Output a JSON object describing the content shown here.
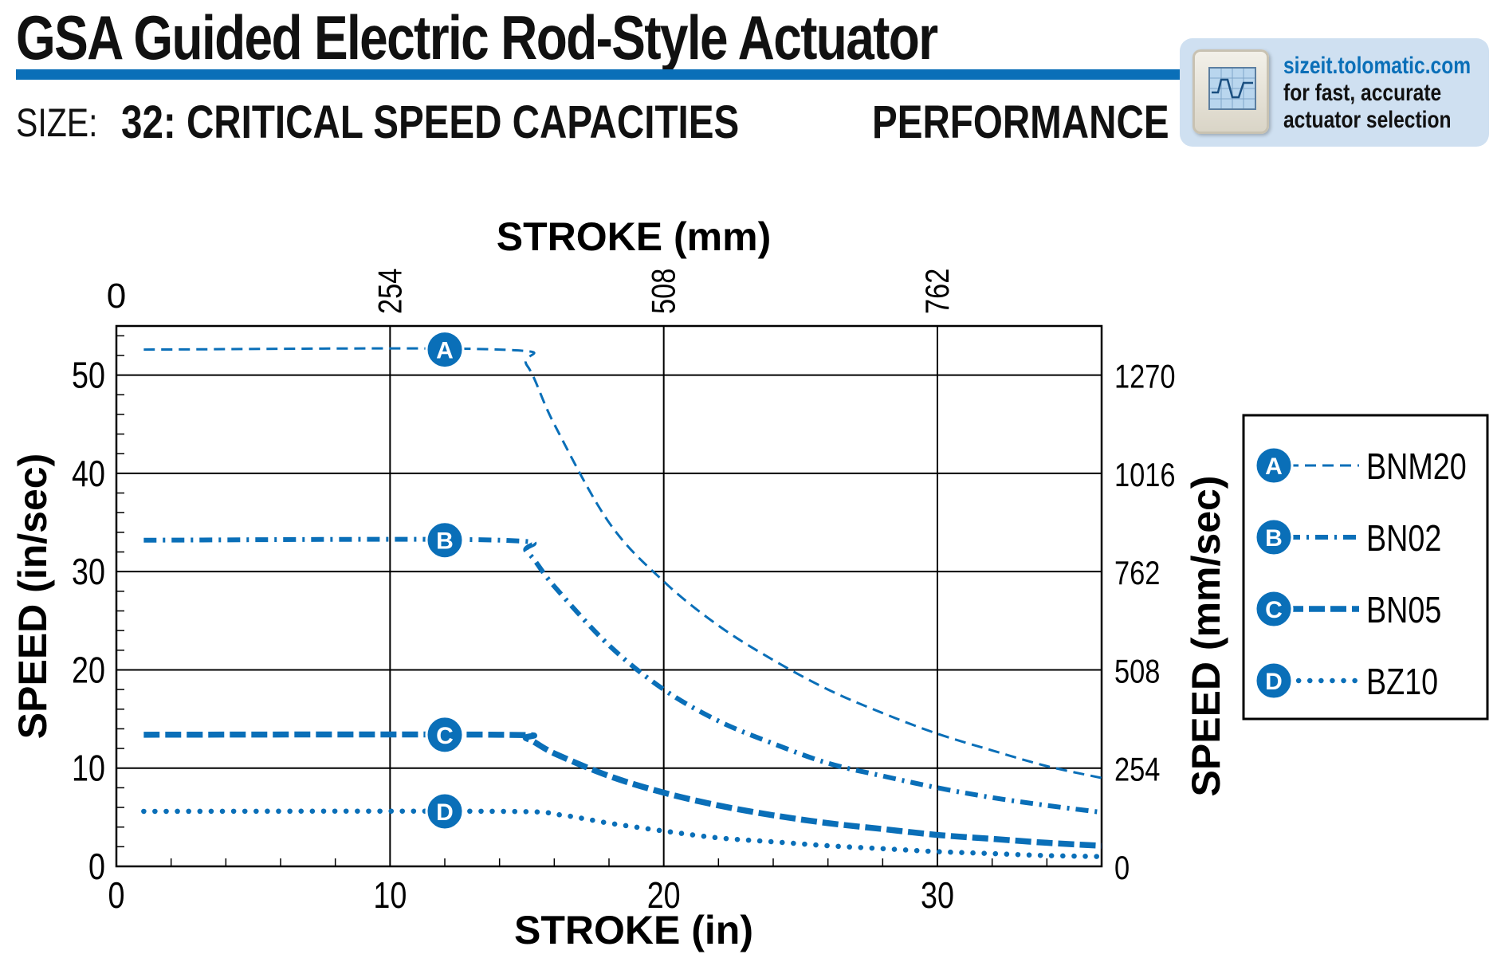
{
  "header": {
    "title": "GSA Guided Electric Rod-Style Actuator",
    "size_label": "SIZE:",
    "size_text": "32: CRITICAL SPEED CAPACITIES",
    "section": "PERFORMANCE",
    "badge": {
      "line1": "sizeit.tolomatic.com",
      "line2": "for fast, accurate",
      "line3": "actuator selection"
    }
  },
  "colors": {
    "accent": "#0a6fb8",
    "grid": "#000000"
  },
  "chart_data": {
    "type": "line",
    "title": "",
    "xlabel": "STROKE (in)",
    "ylabel": "SPEED (in/sec)",
    "x2label": "STROKE (mm)",
    "y2label": "SPEED (mm/sec)",
    "xlim": [
      0,
      36
    ],
    "ylim": [
      0,
      55
    ],
    "x_ticks": [
      "0",
      "10",
      "20",
      "30"
    ],
    "x_tick_values": [
      0,
      10,
      20,
      30
    ],
    "y_ticks": [
      "0",
      "10",
      "20",
      "30",
      "40",
      "50"
    ],
    "y_tick_values": [
      0,
      10,
      20,
      30,
      40,
      50
    ],
    "x2_ticks": [
      "0",
      "254",
      "508",
      "762"
    ],
    "x2_tick_values": [
      0,
      10,
      20,
      30
    ],
    "y2_ticks": [
      "0",
      "254",
      "508",
      "762",
      "1016",
      "1270"
    ],
    "y2_tick_values": [
      0,
      10,
      20,
      30,
      40,
      50
    ],
    "grid": true,
    "legend_position": "right",
    "series": [
      {
        "name": "BNM20",
        "marker": "A",
        "style": "dashed",
        "x": [
          1,
          14,
          15,
          16,
          18,
          20,
          22,
          24,
          26,
          28,
          30,
          32,
          34,
          36
        ],
        "y": [
          52.6,
          52.6,
          51,
          45,
          35,
          29,
          24.5,
          21,
          18,
          15.6,
          13.5,
          11.8,
          10.2,
          9
        ]
      },
      {
        "name": "BN02",
        "marker": "B",
        "style": "dashdot",
        "x": [
          1,
          14,
          15,
          16,
          18,
          20,
          22,
          24,
          26,
          28,
          30,
          32,
          34,
          36
        ],
        "y": [
          33.2,
          33.2,
          32,
          28.5,
          22.5,
          18,
          14.8,
          12.5,
          10.5,
          9.2,
          8.0,
          7.0,
          6.2,
          5.5
        ]
      },
      {
        "name": "BN05",
        "marker": "C",
        "style": "thick-dashed",
        "x": [
          1,
          14,
          15,
          16,
          18,
          20,
          22,
          24,
          26,
          28,
          30,
          32,
          34,
          36
        ],
        "y": [
          13.4,
          13.4,
          13,
          11.5,
          9.2,
          7.5,
          6.2,
          5.2,
          4.4,
          3.8,
          3.2,
          2.8,
          2.4,
          2.1
        ]
      },
      {
        "name": "BZ10",
        "marker": "D",
        "style": "dotted",
        "x": [
          1,
          14,
          16,
          17,
          18,
          20,
          22,
          24,
          26,
          28,
          30,
          32,
          34,
          36
        ],
        "y": [
          5.6,
          5.6,
          5.3,
          4.9,
          4.4,
          3.6,
          2.9,
          2.5,
          2.1,
          1.8,
          1.5,
          1.3,
          1.1,
          1.0
        ]
      }
    ]
  }
}
